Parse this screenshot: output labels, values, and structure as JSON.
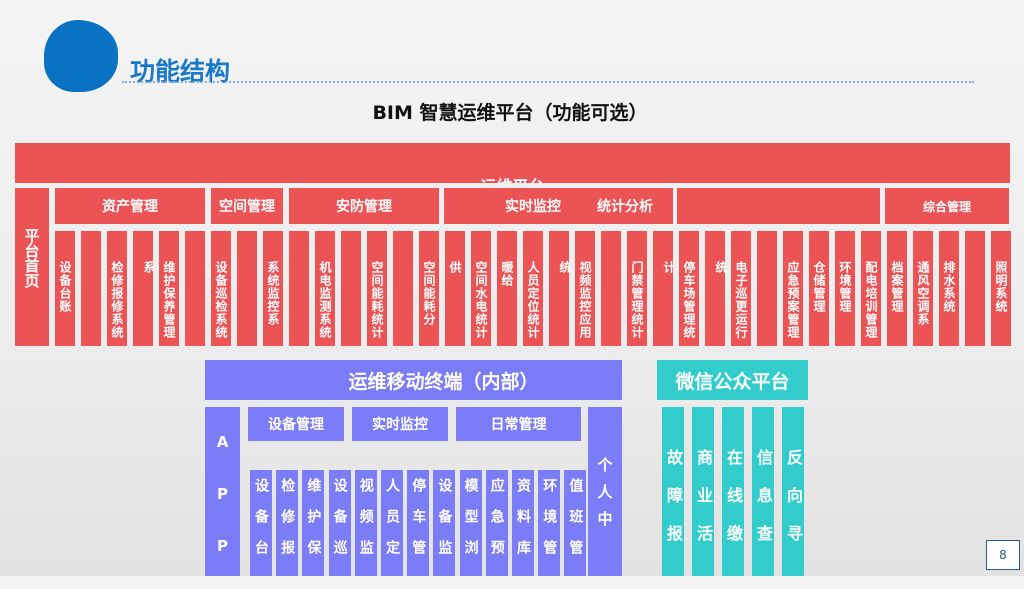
{
  "header": {
    "title": "功能结构",
    "subtitle": "BIM 智慧运维平台（功能可选）"
  },
  "platform": {
    "label": "运维平台",
    "home": "平台首页",
    "groups": [
      "资产管理",
      "空间管理",
      "安防管理",
      "实时监控",
      "统计分析",
      "综合管理"
    ],
    "columns": [
      "设备台账",
      "",
      "检修报修系统",
      "",
      "维护保养管理系",
      "",
      "设备巡检系统",
      "",
      "系统监控系",
      "",
      "机电监测系统",
      "",
      "空间能耗统计",
      "",
      "空间能耗分",
      "供",
      "空间水电统计",
      "暖给",
      "人员定位统计",
      "",
      "视频监控应用统",
      "",
      "门禁管理统计",
      "",
      "停车场管理统计",
      "",
      "电子巡更运行统",
      "",
      "应急预案管理",
      "仓储管理",
      "环境管理",
      "配电培训管理",
      "档案管理",
      "通风空调系",
      "排水系统",
      "",
      "照明系统"
    ]
  },
  "mobile": {
    "title": "运维移动终端（内部）",
    "app": "APP",
    "personal": "个人中",
    "groups": [
      "设备管理",
      "实时监控",
      "日常管理"
    ],
    "columns": [
      "设备台",
      "检修报",
      "维护保",
      "设备巡",
      "视频监",
      "人员定",
      "停车管",
      "设备监",
      "模型浏",
      "应急预",
      "资料库",
      "环境管",
      "值班管"
    ]
  },
  "wechat": {
    "title": "微信公众平台",
    "columns": [
      "故障报",
      "商业活",
      "在线缴",
      "信息查",
      "反向寻"
    ]
  },
  "page": {
    "number": "8"
  },
  "colors": {
    "red": "#ec5355",
    "purple": "#7b7cf7",
    "teal": "#33cccc",
    "title": "#1a78c8"
  }
}
